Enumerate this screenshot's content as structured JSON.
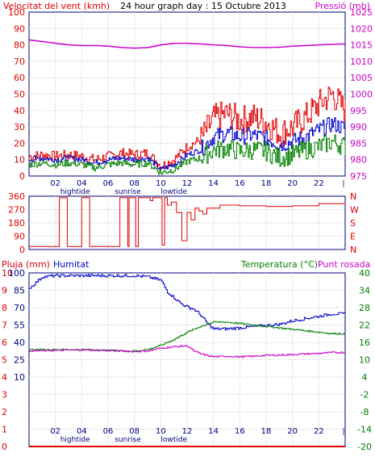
{
  "header": {
    "left_label": "Velocitat del vent (kmh)",
    "center_title": "24 hour graph day : 15 Octubre 2013",
    "right_label": "Pressió (mb)"
  },
  "x_axis": {
    "ticks": [
      "02",
      "04",
      "06",
      "08",
      "10",
      "12",
      "14",
      "16",
      "18",
      "20",
      "22"
    ],
    "events": [
      {
        "label": "hightide",
        "hour": 3.5
      },
      {
        "label": "sunrise",
        "hour": 7.5
      },
      {
        "label": "lowtide",
        "hour": 11.0
      }
    ]
  },
  "colors": {
    "red": "#e00000",
    "blue": "#0000cc",
    "green": "#008000",
    "magenta": "#cc00cc",
    "grid": "#bfbfbf",
    "navy": "#000080"
  },
  "chart_data": [
    {
      "type": "line",
      "name": "wind",
      "left_axis_ticks": [
        "100",
        "90",
        "80",
        "70",
        "60",
        "50",
        "40",
        "30",
        "20",
        "10",
        "0"
      ],
      "right_axis_ticks": [
        "1025",
        "1020",
        "1015",
        "1010",
        "1005",
        "1000",
        "995",
        "990",
        "985",
        "980",
        "975"
      ],
      "ylim": [
        0,
        100
      ],
      "ylim_right": [
        975,
        1025
      ],
      "series": [
        {
          "name": "Pressió (mb)",
          "color": "#cc00cc",
          "axis": "right",
          "x": [
            0,
            1,
            2,
            3,
            4,
            5,
            6,
            7,
            8,
            9,
            10,
            11,
            12,
            13,
            14,
            15,
            16,
            17,
            18,
            19,
            20,
            21,
            22,
            23,
            24
          ],
          "values": [
            1016.5,
            1016,
            1015.5,
            1015,
            1014.8,
            1014.8,
            1014.6,
            1014.2,
            1014,
            1014.2,
            1015,
            1015.5,
            1015.5,
            1015.3,
            1015,
            1014.8,
            1014.4,
            1014.2,
            1014.2,
            1014.3,
            1014.6,
            1014.8,
            1015,
            1015.2,
            1015.3
          ]
        },
        {
          "name": "gust",
          "color": "#e00000",
          "axis": "left",
          "x": [
            0,
            1,
            2,
            3,
            4,
            5,
            6,
            7,
            8,
            9,
            10,
            11,
            12,
            13,
            14,
            15,
            16,
            17,
            18,
            19,
            20,
            21,
            22,
            23,
            24
          ],
          "values": [
            12,
            13,
            12,
            13,
            12,
            10,
            12,
            14,
            13,
            14,
            6,
            10,
            18,
            22,
            35,
            38,
            34,
            36,
            33,
            26,
            30,
            36,
            44,
            50,
            40
          ]
        },
        {
          "name": "average",
          "color": "#0000cc",
          "axis": "left",
          "x": [
            0,
            1,
            2,
            3,
            4,
            5,
            6,
            7,
            8,
            9,
            10,
            11,
            12,
            13,
            14,
            15,
            16,
            17,
            18,
            19,
            20,
            21,
            22,
            23,
            24
          ],
          "values": [
            10,
            11,
            10,
            11,
            10,
            8,
            10,
            11,
            10,
            11,
            4,
            7,
            13,
            16,
            24,
            26,
            24,
            25,
            23,
            19,
            21,
            24,
            28,
            32,
            29
          ]
        },
        {
          "name": "minimum",
          "color": "#008000",
          "axis": "left",
          "x": [
            0,
            1,
            2,
            3,
            4,
            5,
            6,
            7,
            8,
            9,
            10,
            11,
            12,
            13,
            14,
            15,
            16,
            17,
            18,
            19,
            20,
            21,
            22,
            23,
            24
          ],
          "values": [
            7,
            8,
            7,
            8,
            7,
            5,
            7,
            8,
            7,
            8,
            2,
            4,
            9,
            11,
            16,
            17,
            15,
            16,
            15,
            11,
            13,
            16,
            18,
            21,
            18
          ]
        }
      ]
    },
    {
      "type": "line",
      "name": "direction",
      "left_axis_ticks": [
        "360",
        "270",
        "180",
        "90",
        "0"
      ],
      "right_axis_ticks": [
        "N",
        "W",
        "S",
        "E",
        "N"
      ],
      "ylim": [
        0,
        360
      ],
      "series": [
        {
          "name": "direction",
          "color": "#e00000",
          "axis": "left",
          "x": [
            0,
            0.8,
            1.1,
            2.2,
            2.3,
            2.8,
            2.9,
            3.8,
            4.0,
            4.5,
            4.6,
            5.7,
            5.8,
            6.8,
            6.9,
            7.4,
            7.5,
            7.6,
            7.9,
            8.1,
            8.3,
            8.5,
            9.2,
            9.4,
            9.8,
            10.1,
            10.3,
            10.5,
            10.8,
            11.2,
            11.6,
            12.0,
            12.3,
            12.6,
            12.9,
            13.2,
            13.5,
            14.5,
            16,
            18,
            20,
            22,
            24
          ],
          "values": [
            20,
            20,
            20,
            20,
            350,
            350,
            20,
            20,
            350,
            350,
            20,
            20,
            20,
            20,
            350,
            350,
            20,
            350,
            350,
            20,
            350,
            350,
            330,
            350,
            350,
            30,
            350,
            300,
            320,
            250,
            60,
            250,
            200,
            280,
            260,
            240,
            280,
            300,
            295,
            290,
            295,
            310,
            300
          ]
        }
      ]
    },
    {
      "type": "line",
      "name": "rain_humidity_temperature",
      "left_axis_label": "Pluja (mm)",
      "humidity_label": "Humitat",
      "right_axis_label": "Temperatura (°C)",
      "dewpoint_label": "Punt rosada",
      "rain_ticks": [
        "10",
        "9",
        "8",
        "7",
        "6",
        "5",
        "4",
        "3",
        "2",
        "1",
        "0"
      ],
      "humidity_ticks": [
        "100",
        "85",
        "70",
        "55",
        "40",
        "25",
        "10"
      ],
      "temperature_ticks": [
        "40",
        "34",
        "28",
        "22",
        "16",
        "10",
        "4",
        "-2",
        "-8",
        "-14",
        "-20"
      ],
      "ylim_rain": [
        0,
        10
      ],
      "ylim_temperature": [
        -20,
        40
      ],
      "series": [
        {
          "name": "Humitat",
          "color": "#0000cc",
          "axis": "humidity",
          "x": [
            0,
            1,
            2,
            3,
            4,
            5,
            6,
            7,
            8,
            9,
            10,
            10.5,
            11,
            11.5,
            12,
            12.5,
            13,
            13.5,
            14,
            15,
            16,
            17,
            18,
            19,
            20,
            21,
            22,
            23,
            24
          ],
          "values": [
            88,
            98,
            99,
            99,
            99,
            99,
            99,
            99,
            99,
            98,
            95,
            85,
            80,
            75,
            72,
            70,
            65,
            58,
            53,
            53,
            54,
            55,
            56,
            57,
            60,
            62,
            64,
            66,
            66
          ]
        },
        {
          "name": "Temperatura (°C)",
          "color": "#008000",
          "axis": "temperature",
          "x": [
            0,
            2,
            4,
            6,
            8,
            9,
            10,
            11,
            12,
            13,
            14,
            15,
            16,
            17,
            18,
            19,
            20,
            21,
            22,
            23,
            24
          ],
          "values": [
            13.5,
            13.5,
            13.5,
            13.2,
            13,
            13.5,
            15,
            17,
            19.5,
            21.5,
            23,
            23,
            22.5,
            22,
            21.5,
            21,
            20.5,
            20,
            19.5,
            19,
            19
          ]
        },
        {
          "name": "Punt rosada",
          "color": "#cc00cc",
          "axis": "temperature",
          "x": [
            0,
            2,
            4,
            6,
            8,
            9,
            10,
            11,
            12,
            12.5,
            13,
            14,
            15,
            16,
            17,
            18,
            19,
            20,
            21,
            22,
            23,
            24
          ],
          "values": [
            13,
            13.2,
            13.4,
            13.2,
            12.8,
            13,
            14,
            14.5,
            14.8,
            13,
            12,
            11,
            11.2,
            11,
            11.2,
            11.5,
            11.6,
            11.8,
            12,
            12.2,
            12.5,
            12.5
          ]
        },
        {
          "name": "Pluja (mm)",
          "color": "#e00000",
          "axis": "rain",
          "x": [
            0,
            24
          ],
          "values": [
            0,
            0
          ]
        }
      ]
    }
  ]
}
